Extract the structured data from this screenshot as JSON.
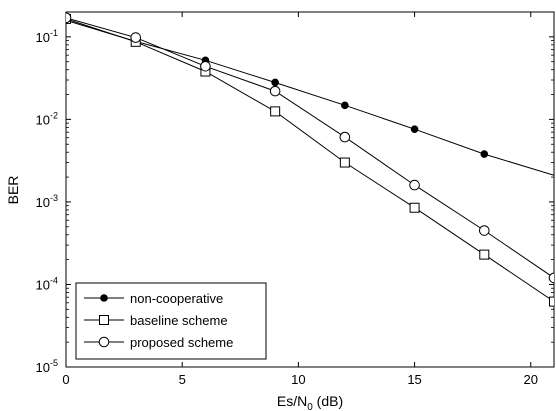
{
  "chart_data": {
    "type": "line",
    "title": "",
    "xlabel": "Es/N0 (dB)",
    "xlabel_parts": {
      "base": "Es/N",
      "sub": "0",
      "unit": " (dB)"
    },
    "ylabel": "BER",
    "xlim": [
      0,
      21
    ],
    "ylim": [
      1e-05,
      0.2
    ],
    "yscale": "log",
    "grid": false,
    "legend_position": "bottom-left",
    "xticks": [
      0,
      5,
      10,
      15,
      20
    ],
    "xtick_labels": [
      "0",
      "5",
      "10",
      "15",
      "20"
    ],
    "yticks": [
      0.1,
      0.01,
      0.001,
      0.0001,
      1e-05
    ],
    "ytick_labels": [
      {
        "base": "10",
        "exp": "-1"
      },
      {
        "base": "10",
        "exp": "-2"
      },
      {
        "base": "10",
        "exp": "-3"
      },
      {
        "base": "10",
        "exp": "-4"
      },
      {
        "base": "10",
        "exp": "-5"
      }
    ],
    "series": [
      {
        "name": "non-cooperative",
        "marker": "filled-circle",
        "color": "#000000",
        "x": [
          0,
          3,
          6,
          9,
          12,
          15,
          18,
          21
        ],
        "y": [
          0.158,
          0.088,
          0.052,
          0.028,
          0.0148,
          0.0076,
          0.0038,
          0.0021
        ],
        "marker_x": [
          0,
          3,
          6,
          9,
          12,
          15,
          18
        ]
      },
      {
        "name": "baseline scheme",
        "marker": "square",
        "color": "#000000",
        "x": [
          0,
          3,
          6,
          9,
          12,
          15,
          18,
          21
        ],
        "y": [
          0.165,
          0.087,
          0.038,
          0.0125,
          0.003,
          0.00085,
          0.00023,
          6.2e-05
        ],
        "marker_x": [
          0,
          3,
          6,
          9,
          12,
          15,
          18,
          21
        ]
      },
      {
        "name": "proposed scheme",
        "marker": "open-circle",
        "color": "#000000",
        "x": [
          0,
          3,
          6,
          9,
          12,
          15,
          18,
          21
        ],
        "y": [
          0.17,
          0.098,
          0.044,
          0.022,
          0.0061,
          0.0016,
          0.00045,
          0.00012
        ],
        "marker_x": [
          0,
          3,
          6,
          9,
          12,
          15,
          18,
          21
        ]
      }
    ]
  }
}
